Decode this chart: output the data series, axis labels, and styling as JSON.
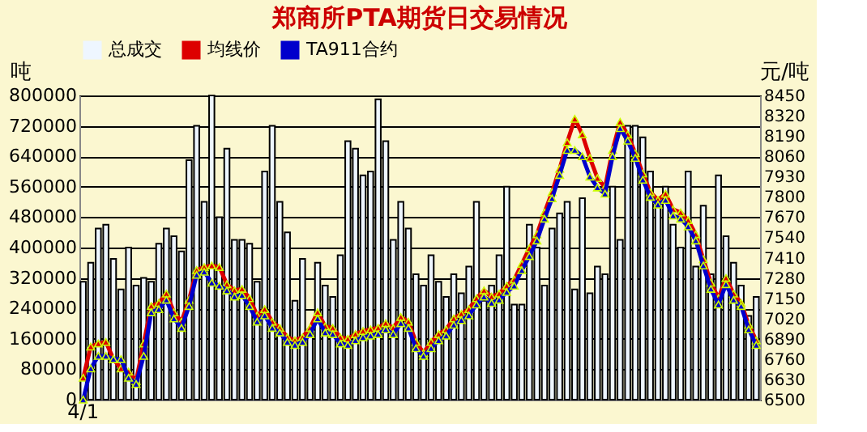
{
  "chart_data": {
    "type": "bar",
    "title": "郑商所PTA期货日交易情况",
    "ylabel": "吨",
    "y2label": "元/吨",
    "categories": [
      "4/1",
      null,
      null,
      null,
      null,
      null,
      null,
      null,
      null,
      null,
      null,
      null,
      null,
      null,
      null,
      null,
      null,
      null,
      null,
      null,
      null,
      null,
      null,
      null,
      null,
      null,
      null,
      null,
      null,
      null,
      null,
      null,
      null,
      null,
      null,
      null,
      null,
      null,
      null,
      null,
      null,
      null,
      null,
      null,
      null,
      null,
      null,
      null,
      null,
      null,
      null,
      null,
      null,
      null,
      null,
      null,
      null,
      null,
      null,
      null,
      null,
      null,
      null,
      null,
      null,
      null,
      null,
      null,
      null,
      null,
      null,
      null,
      null,
      null,
      null,
      null,
      null,
      null,
      null,
      null,
      null,
      null,
      null,
      null,
      null,
      null,
      null,
      null,
      null,
      null
    ],
    "series": [
      {
        "name": "总成交",
        "color": "#eef6ff",
        "values": [
          310000,
          360000,
          450000,
          460000,
          370000,
          290000,
          400000,
          300000,
          320000,
          310000,
          410000,
          450000,
          430000,
          390000,
          630000,
          720000,
          520000,
          800000,
          480000,
          660000,
          420000,
          420000,
          410000,
          310000,
          600000,
          720000,
          520000,
          440000,
          260000,
          370000,
          180000,
          360000,
          300000,
          270000,
          380000,
          680000,
          660000,
          590000,
          600000,
          790000,
          680000,
          420000,
          520000,
          450000,
          330000,
          300000,
          380000,
          310000,
          270000,
          330000,
          280000,
          350000,
          520000,
          260000,
          300000,
          380000,
          560000,
          250000,
          250000,
          460000,
          400000,
          300000,
          450000,
          490000,
          520000,
          290000,
          530000,
          280000,
          350000,
          330000,
          560000,
          420000,
          720000,
          720000,
          690000,
          600000,
          530000,
          560000,
          460000,
          400000,
          600000,
          350000,
          510000,
          330000,
          590000,
          430000,
          360000,
          300000,
          220000,
          270000
        ]
      },
      {
        "name": "均线价",
        "type": "line",
        "axis": "y2",
        "color": "#dd0000",
        "values": [
          6640,
          6840,
          6860,
          6870,
          6760,
          6700,
          6680,
          6620,
          6860,
          7100,
          7120,
          7180,
          7060,
          7000,
          7140,
          7330,
          7350,
          7360,
          7350,
          7240,
          7200,
          7210,
          7150,
          7040,
          7080,
          7000,
          6960,
          6900,
          6880,
          6900,
          6960,
          7060,
          6970,
          6960,
          6900,
          6890,
          6920,
          6940,
          6950,
          6960,
          6990,
          6960,
          7030,
          7000,
          6870,
          6800,
          6870,
          6920,
          6950,
          7020,
          7050,
          7080,
          7150,
          7200,
          7160,
          7180,
          7230,
          7270,
          7370,
          7470,
          7560,
          7700,
          7830,
          7980,
          8150,
          8300,
          8200,
          8050,
          7920,
          7860,
          8100,
          8280,
          8200,
          8080,
          7950,
          7830,
          7780,
          7820,
          7720,
          7700,
          7650,
          7560,
          7400,
          7250,
          7150,
          7280,
          7180,
          7120,
          6980,
          6880
        ]
      },
      {
        "name": "TA911合约",
        "type": "line",
        "axis": "y2",
        "color": "#0000cc",
        "values": [
          6500,
          6700,
          6780,
          6780,
          6760,
          6760,
          6640,
          6600,
          6780,
          7060,
          7080,
          7140,
          7020,
          6960,
          7100,
          7300,
          7320,
          7250,
          7230,
          7200,
          7160,
          7170,
          7100,
          7000,
          7040,
          6960,
          6930,
          6870,
          6850,
          6870,
          6920,
          7020,
          6930,
          6920,
          6860,
          6850,
          6880,
          6900,
          6910,
          6920,
          6950,
          6920,
          6990,
          6960,
          6830,
          6780,
          6830,
          6880,
          6910,
          6980,
          7010,
          7040,
          7110,
          7160,
          7120,
          7140,
          7190,
          7230,
          7330,
          7420,
          7520,
          7660,
          7790,
          7940,
          8100,
          8100,
          8060,
          7930,
          7860,
          7820,
          8060,
          8240,
          8160,
          8050,
          7910,
          7800,
          7750,
          7780,
          7680,
          7660,
          7610,
          7520,
          7360,
          7210,
          7110,
          7240,
          7140,
          7100,
          6950,
          6850
        ]
      }
    ],
    "ylim": [
      0,
      800000
    ],
    "yticks": [
      0,
      80000,
      160000,
      240000,
      320000,
      400000,
      480000,
      560000,
      640000,
      720000,
      800000
    ],
    "y2lim": [
      6500,
      8450
    ],
    "y2ticks": [
      6500,
      6630,
      6760,
      6890,
      7020,
      7150,
      7280,
      7410,
      7540,
      7670,
      7800,
      7930,
      8060,
      8190,
      8320,
      8450
    ],
    "grid": "y",
    "legend": "top",
    "marker": "triangle"
  }
}
